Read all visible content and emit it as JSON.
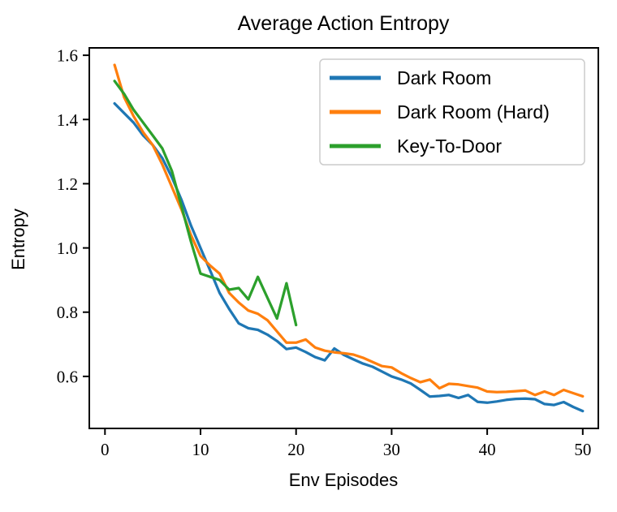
{
  "chart_data": {
    "type": "line",
    "title": "Average Action Entropy",
    "xlabel": "Env Episodes",
    "ylabel": "Entropy",
    "xlim": [
      -1.64,
      51.63
    ],
    "ylim": [
      0.438,
      1.623
    ],
    "grid": false,
    "legend_position": "upper right",
    "axis_color": "#000000",
    "background": "#ffffff",
    "legend_border_color": "#cccccc",
    "x_ticks": {
      "values": [
        0,
        10,
        20,
        30,
        40,
        50
      ],
      "labels": [
        "0",
        "10",
        "20",
        "30",
        "40",
        "50"
      ]
    },
    "y_ticks": {
      "values": [
        0.6,
        0.8,
        1.0,
        1.2,
        1.4,
        1.6
      ],
      "labels": [
        "0.6",
        "0.8",
        "1.0",
        "1.2",
        "1.4",
        "1.6"
      ]
    },
    "series": [
      {
        "name": "Dark Room",
        "color": "#1f77b4",
        "x": [
          1,
          2,
          3,
          4,
          5,
          6,
          7,
          8,
          9,
          10,
          11,
          12,
          13,
          14,
          15,
          16,
          17,
          18,
          19,
          20,
          21,
          22,
          23,
          24,
          25,
          26,
          27,
          28,
          29,
          30,
          31,
          32,
          33,
          34,
          35,
          36,
          37,
          38,
          39,
          40,
          41,
          42,
          43,
          44,
          45,
          46,
          47,
          48,
          49,
          50
        ],
        "y": [
          1.45,
          1.42,
          1.39,
          1.35,
          1.32,
          1.28,
          1.22,
          1.15,
          1.07,
          1.0,
          0.93,
          0.86,
          0.81,
          0.765,
          0.75,
          0.745,
          0.73,
          0.71,
          0.685,
          0.69,
          0.676,
          0.66,
          0.65,
          0.687,
          0.667,
          0.653,
          0.64,
          0.63,
          0.615,
          0.6,
          0.59,
          0.578,
          0.558,
          0.537,
          0.539,
          0.542,
          0.533,
          0.542,
          0.521,
          0.518,
          0.522,
          0.527,
          0.53,
          0.531,
          0.529,
          0.514,
          0.511,
          0.52,
          0.505,
          0.492
        ]
      },
      {
        "name": "Dark Room (Hard)",
        "color": "#ff7f0e",
        "x": [
          1,
          2,
          3,
          4,
          5,
          6,
          7,
          8,
          9,
          10,
          11,
          12,
          13,
          14,
          15,
          16,
          17,
          18,
          19,
          20,
          21,
          22,
          23,
          24,
          25,
          26,
          27,
          28,
          29,
          30,
          31,
          32,
          33,
          34,
          35,
          36,
          37,
          38,
          39,
          40,
          41,
          42,
          43,
          44,
          45,
          46,
          47,
          48,
          49,
          50
        ],
        "y": [
          1.57,
          1.47,
          1.41,
          1.36,
          1.32,
          1.26,
          1.19,
          1.12,
          1.04,
          0.975,
          0.945,
          0.92,
          0.86,
          0.83,
          0.805,
          0.795,
          0.775,
          0.74,
          0.705,
          0.705,
          0.715,
          0.69,
          0.68,
          0.675,
          0.672,
          0.668,
          0.658,
          0.645,
          0.632,
          0.628,
          0.61,
          0.595,
          0.582,
          0.59,
          0.563,
          0.577,
          0.575,
          0.57,
          0.565,
          0.553,
          0.551,
          0.552,
          0.554,
          0.556,
          0.542,
          0.553,
          0.542,
          0.558,
          0.548,
          0.538
        ]
      },
      {
        "name": "Key-To-Door",
        "color": "#2ca02c",
        "x": [
          1,
          2,
          3,
          4,
          5,
          6,
          7,
          8,
          9,
          10,
          11,
          12,
          13,
          14,
          15,
          16,
          17,
          18,
          19,
          20
        ],
        "y": [
          1.52,
          1.48,
          1.43,
          1.39,
          1.35,
          1.31,
          1.24,
          1.13,
          1.02,
          0.92,
          0.91,
          0.9,
          0.87,
          0.875,
          0.84,
          0.91,
          0.845,
          0.78,
          0.89,
          0.76
        ]
      }
    ]
  }
}
